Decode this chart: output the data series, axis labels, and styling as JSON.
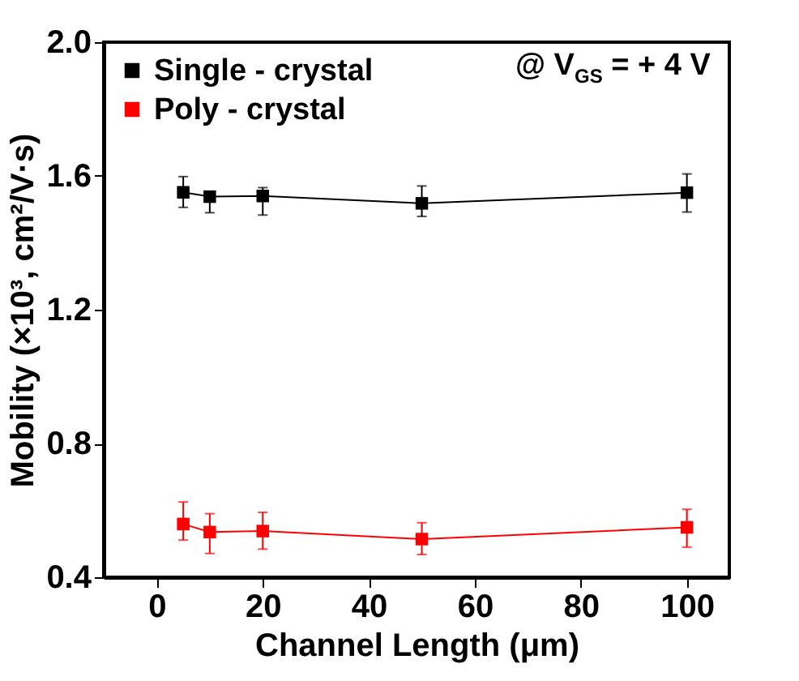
{
  "chart_data": {
    "type": "line",
    "xlabel": "Channel Length (μm)",
    "ylabel": "Mobility (×10³, cm²/V·s)",
    "annotations": [
      "@ V$_{GS}$ = + 4 V"
    ],
    "x": [
      5,
      10,
      20,
      50,
      100
    ],
    "xlim": [
      -10,
      108
    ],
    "xticks": [
      0,
      20,
      40,
      60,
      80,
      100
    ],
    "ylim": [
      0.4,
      2.0
    ],
    "yticks": [
      0.4,
      0.8,
      1.2,
      1.6,
      {
        "value": 2,
        "label": "2.0"
      }
    ],
    "legend": "top left",
    "marker": "square",
    "grid": false,
    "series": [
      {
        "name": "Single - crystal",
        "color": "#000000",
        "values": [
          1.551,
          1.538,
          1.54,
          1.518,
          1.55
        ],
        "errors": [
          [
            1.506,
            1.598
          ],
          [
            1.49,
            1.545
          ],
          [
            1.483,
            1.565
          ],
          [
            1.479,
            1.57
          ],
          [
            1.492,
            1.606
          ]
        ]
      },
      {
        "name": "Poly - crystal",
        "color": "#ff0000",
        "values": [
          0.559,
          0.535,
          0.538,
          0.514,
          0.549
        ],
        "errors": [
          [
            0.511,
            0.625
          ],
          [
            0.471,
            0.59
          ],
          [
            0.484,
            0.594
          ],
          [
            0.468,
            0.563
          ],
          [
            0.49,
            0.603
          ]
        ]
      }
    ]
  }
}
